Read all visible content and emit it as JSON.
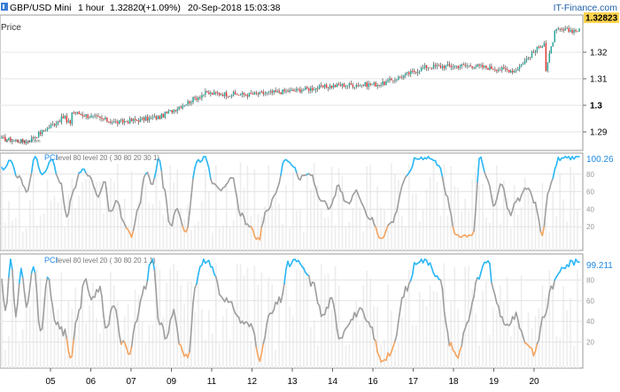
{
  "header": {
    "symbol": "GBP/USD Mini",
    "interval": "1 hour",
    "price": "1.32820",
    "change": "(+1.09%)",
    "datetime": "20-Sep-2018 15:03:38",
    "brand": "IT-Finance.com"
  },
  "price_panel": {
    "label": "Price",
    "watermark": "© IT-Finance.com",
    "current_price_tag": "1.32823"
  },
  "pci_panel_1": {
    "label": "PCI",
    "legend_rest": "level 80 level 20 ( 30 80 20 30 1)",
    "current_value_tag": "100.26"
  },
  "pci_panel_2": {
    "label": "PCI",
    "legend_rest": "level 80 level 20 ( 30 80 20 1 1)",
    "current_value_tag": "99.211"
  },
  "colors": {
    "up_candle": "#26a69a",
    "down_candle": "#e53935",
    "pci_high": "#29b6f6",
    "pci_mid": "#9e9e9e",
    "pci_low": "#f4a460",
    "price_tag_bg": "#ffd54f",
    "brand_text": "#1f5fa8"
  },
  "chart_data": [
    {
      "type": "candlestick",
      "title": "GBP/USD Mini",
      "xlabel": "",
      "ylabel": "Price",
      "ylim": [
        1.283,
        1.334
      ],
      "y_ticks": [
        "1.29",
        "1.3",
        "1.31",
        "1.32"
      ],
      "x_ticks": [
        "05",
        "06",
        "07",
        "09",
        "11",
        "12",
        "13",
        "14",
        "16",
        "17",
        "18",
        "19",
        "20"
      ],
      "grid": true,
      "current_price": 1.32823,
      "approx_close_path": [
        {
          "day": "04",
          "close": 1.2875
        },
        {
          "day": "05",
          "close": 1.2862
        },
        {
          "day": "06",
          "close": 1.2975
        },
        {
          "day": "07",
          "close": 1.2935
        },
        {
          "day": "09",
          "close": 1.2955
        },
        {
          "day": "11",
          "close": 1.3045
        },
        {
          "day": "12",
          "close": 1.304
        },
        {
          "day": "13",
          "close": 1.3055
        },
        {
          "day": "14",
          "close": 1.3075
        },
        {
          "day": "16",
          "close": 1.308
        },
        {
          "day": "17",
          "close": 1.3145
        },
        {
          "day": "18",
          "close": 1.315
        },
        {
          "day": "19",
          "close": 1.313
        },
        {
          "day": "20",
          "close": 1.3282
        }
      ]
    },
    {
      "type": "line",
      "title": "PCI",
      "ylim": [
        0,
        100
      ],
      "y_ticks": [
        "100.26",
        "80",
        "60",
        "40",
        "20"
      ],
      "levels": [
        80,
        20
      ],
      "series": [
        {
          "name": "PCI",
          "last_value": 100.26
        }
      ]
    },
    {
      "type": "line",
      "title": "PCI",
      "ylim": [
        0,
        100
      ],
      "y_ticks": [
        "99.211",
        "80",
        "60",
        "40",
        "20"
      ],
      "levels": [
        80,
        20
      ],
      "series": [
        {
          "name": "PCI",
          "last_value": 99.211
        }
      ]
    }
  ]
}
